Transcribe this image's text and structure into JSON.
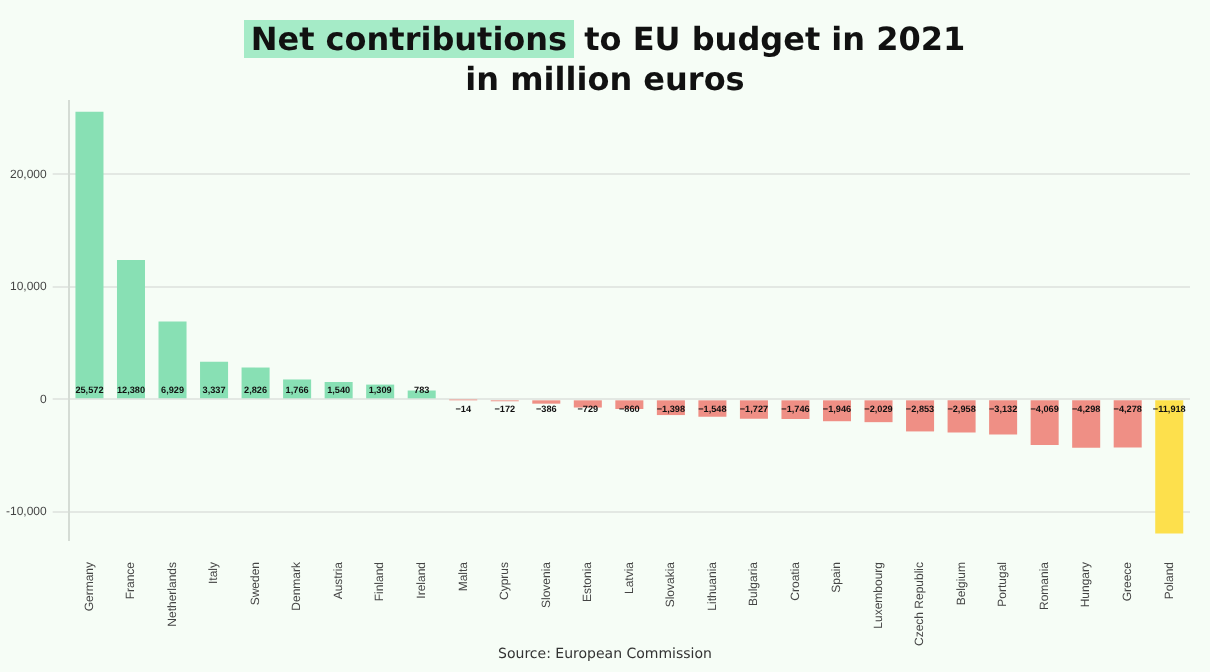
{
  "chart_data": {
    "type": "bar",
    "title": "Net contributions to EU budget in 2021",
    "subtitle": "in million euros",
    "categories": [
      "Germany",
      "France",
      "Netherlands",
      "Italy",
      "Sweden",
      "Denmark",
      "Austria",
      "Finland",
      "Ireland",
      "Malta",
      "Cyprus",
      "Slovenia",
      "Estonia",
      "Latvia",
      "Slovakia",
      "Lithuania",
      "Bulgaria",
      "Croatia",
      "Spain",
      "Luxembourg",
      "Czech Republic",
      "Belgium",
      "Portugal",
      "Romania",
      "Hungary",
      "Greece",
      "Poland"
    ],
    "values": [
      25572,
      12380,
      6929,
      3337,
      2826,
      1766,
      1540,
      1309,
      783,
      -14,
      -172,
      -386,
      -729,
      -860,
      -1398,
      -1548,
      -1727,
      -1746,
      -1946,
      -2029,
      -2853,
      -2958,
      -3132,
      -4069,
      -4298,
      -4278,
      -11918
    ],
    "colors": [
      "#88e0b4",
      "#88e0b4",
      "#88e0b4",
      "#88e0b4",
      "#88e0b4",
      "#88e0b4",
      "#88e0b4",
      "#88e0b4",
      "#88e0b4",
      "#ef8f85",
      "#ef8f85",
      "#ef8f85",
      "#ef8f85",
      "#ef8f85",
      "#ef8f85",
      "#ef8f85",
      "#ef8f85",
      "#ef8f85",
      "#ef8f85",
      "#ef8f85",
      "#ef8f85",
      "#ef8f85",
      "#ef8f85",
      "#ef8f85",
      "#ef8f85",
      "#ef8f85",
      "#fde04c"
    ],
    "ylim": [
      -12500,
      26500
    ],
    "yticks": [
      {
        "value": -10000,
        "label": "-10,000"
      },
      0,
      {
        "value": 10000,
        "label": "10,000"
      },
      {
        "value": 20000,
        "label": "20,000"
      }
    ],
    "value_labels": [
      "25,572",
      "12,380",
      "6,929",
      "3,337",
      "2,826",
      "1,766",
      "1,540",
      "1,309",
      "783",
      "−14",
      "−172",
      "−386",
      "−729",
      "−860",
      "−1,398",
      "−1,548",
      "−1,727",
      "−1,746",
      "−1,946",
      "−2,029",
      "−2,853",
      "−2,958",
      "−3,132",
      "−4,069",
      "−4,298",
      "−4,278",
      "−11,918"
    ],
    "grid": "y",
    "legend": false,
    "annotations": [
      "Source: European Commission"
    ]
  }
}
